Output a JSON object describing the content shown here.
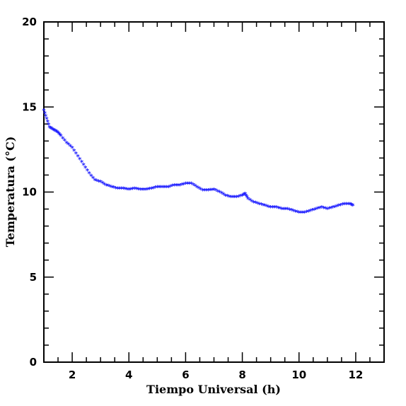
{
  "chart_data": {
    "type": "scatter",
    "xlabel": "Tiempo Universal (h)",
    "ylabel": "Temperatura (°C)",
    "xlim": [
      1,
      13
    ],
    "ylim": [
      0,
      20
    ],
    "x_ticks": [
      2,
      4,
      6,
      8,
      10,
      12
    ],
    "y_ticks": [
      0,
      5,
      10,
      15,
      20
    ],
    "grid": false,
    "marker": "*",
    "marker_color": "#1a1aff",
    "x": [
      1.0,
      1.1,
      1.2,
      1.3,
      1.4,
      1.5,
      1.6,
      1.8,
      2.0,
      2.2,
      2.4,
      2.6,
      2.8,
      3.0,
      3.2,
      3.4,
      3.6,
      3.8,
      4.0,
      4.2,
      4.4,
      4.6,
      4.8,
      5.0,
      5.2,
      5.4,
      5.6,
      5.8,
      6.0,
      6.2,
      6.4,
      6.6,
      6.8,
      7.0,
      7.2,
      7.4,
      7.6,
      7.8,
      8.0,
      8.1,
      8.2,
      8.4,
      8.6,
      8.8,
      9.0,
      9.2,
      9.4,
      9.6,
      9.8,
      10.0,
      10.2,
      10.4,
      10.6,
      10.8,
      11.0,
      11.2,
      11.4,
      11.6,
      11.8,
      11.9
    ],
    "y": [
      14.8,
      14.3,
      13.8,
      13.7,
      13.6,
      13.5,
      13.3,
      12.9,
      12.6,
      12.1,
      11.6,
      11.1,
      10.7,
      10.6,
      10.4,
      10.3,
      10.2,
      10.2,
      10.15,
      10.2,
      10.15,
      10.15,
      10.2,
      10.3,
      10.3,
      10.3,
      10.4,
      10.4,
      10.5,
      10.5,
      10.3,
      10.1,
      10.1,
      10.15,
      10.0,
      9.8,
      9.7,
      9.7,
      9.8,
      9.9,
      9.6,
      9.4,
      9.3,
      9.2,
      9.1,
      9.1,
      9.0,
      9.0,
      8.9,
      8.8,
      8.8,
      8.9,
      9.0,
      9.1,
      9.0,
      9.1,
      9.2,
      9.3,
      9.3,
      9.2
    ]
  }
}
